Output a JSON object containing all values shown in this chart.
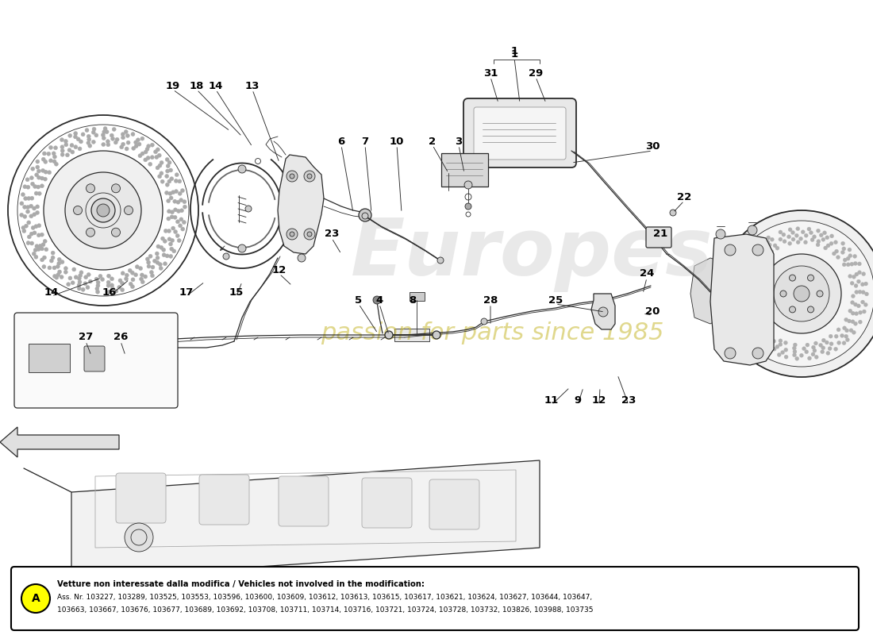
{
  "bg_color": "#ffffff",
  "line_color": "#2a2a2a",
  "note_title": "Vetture non interessate dalla modifica / Vehicles not involved in the modification:",
  "note_body_line1": "Ass. Nr. 103227, 103289, 103525, 103553, 103596, 103600, 103609, 103612, 103613, 103615, 103617, 103621, 103624, 103627, 103644, 103647,",
  "note_body_line2": "103663, 103667, 103676, 103677, 103689, 103692, 103708, 103711, 103714, 103716, 103721, 103724, 103728, 103732, 103826, 103988, 103735",
  "label_A_bg": "#ffff00",
  "watermark1": "Europes",
  "watermark2": "passion for parts since 1985",
  "figsize": [
    11.0,
    8.0
  ],
  "dpi": 100,
  "labels": [
    [
      "1",
      660,
      92
    ],
    [
      "31",
      618,
      118
    ],
    [
      "29",
      678,
      118
    ],
    [
      "30",
      810,
      195
    ],
    [
      "22",
      855,
      268
    ],
    [
      "21",
      822,
      298
    ],
    [
      "2",
      558,
      228
    ],
    [
      "3",
      588,
      210
    ],
    [
      "10",
      522,
      208
    ],
    [
      "7",
      492,
      208
    ],
    [
      "6",
      462,
      210
    ],
    [
      "23",
      418,
      298
    ],
    [
      "5",
      468,
      375
    ],
    [
      "4",
      490,
      375
    ],
    [
      "8",
      528,
      375
    ],
    [
      "28",
      616,
      378
    ],
    [
      "25",
      692,
      378
    ],
    [
      "24",
      808,
      355
    ],
    [
      "20",
      818,
      395
    ],
    [
      "12",
      358,
      340
    ],
    [
      "11",
      692,
      500
    ],
    [
      "9",
      728,
      500
    ],
    [
      "12",
      752,
      500
    ],
    [
      "23",
      790,
      500
    ],
    [
      "13",
      318,
      142
    ],
    [
      "14",
      272,
      142
    ],
    [
      "18",
      248,
      142
    ],
    [
      "19",
      218,
      142
    ],
    [
      "14",
      68,
      368
    ],
    [
      "16",
      138,
      368
    ],
    [
      "17",
      234,
      368
    ],
    [
      "15",
      298,
      368
    ],
    [
      "27",
      108,
      428
    ],
    [
      "26",
      152,
      428
    ]
  ]
}
